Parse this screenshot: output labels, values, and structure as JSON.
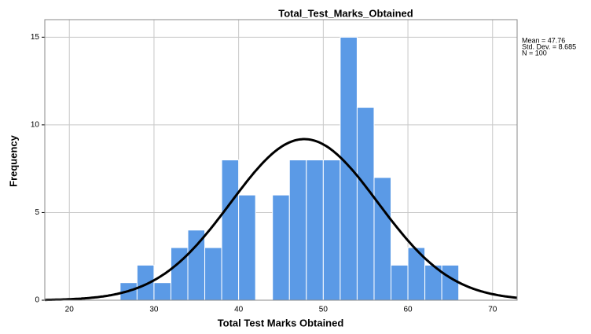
{
  "chart_data": {
    "type": "histogram",
    "title": "Total_Test_Marks_Obtained",
    "x_label": "Total  Test  Marks  Obtained",
    "y_label": "Frequency",
    "bins": [
      26,
      28,
      30,
      32,
      34,
      36,
      38,
      40,
      42,
      44,
      46,
      48,
      50,
      52,
      54,
      56,
      58,
      60,
      62,
      64,
      66
    ],
    "values": [
      1,
      2,
      1,
      3,
      4,
      3,
      8,
      6,
      0,
      6,
      8,
      8,
      8,
      15,
      11,
      7,
      2,
      3,
      2,
      2
    ],
    "color": "#5b9ae6",
    "curve_color": "#000000",
    "xlim": [
      17.1,
      72.9
    ],
    "xticks": [
      20,
      30,
      40,
      50,
      60,
      70
    ],
    "ylim": [
      0,
      16
    ],
    "yticks": [
      0,
      5,
      10,
      15
    ],
    "grid": true,
    "stats": [
      {
        "value": 47.76,
        "label": "Mean = 47.76"
      },
      {
        "value": 8.685,
        "label": "Std. Dev. = 8.685"
      },
      {
        "value": 100,
        "label": "N = 100"
      }
    ]
  }
}
